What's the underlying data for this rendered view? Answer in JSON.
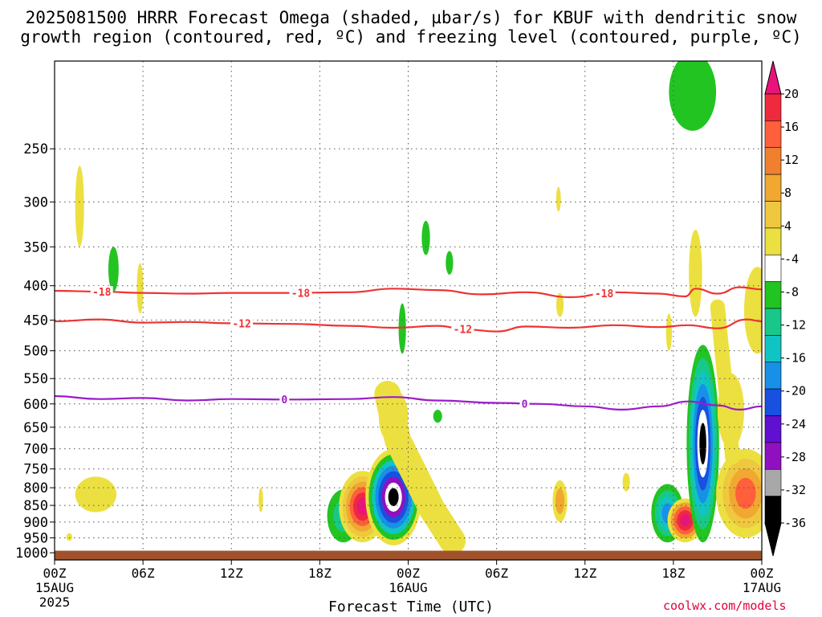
{
  "title": {
    "line1": "2025081500 HRRR Forecast Omega (shaded, µbar/s) for KBUF with dendritic snow",
    "line2": "growth region (contoured, red, ºC) and freezing level (contoured, purple, ºC)"
  },
  "credit": "coolwx.com/models",
  "chart_data": {
    "type": "heatmap",
    "xlabel": "Forecast Time (UTC)",
    "ylabel": "",
    "y_axis": {
      "scale": "pressure",
      "ylim": [
        1025,
        185
      ],
      "ticks": [
        250,
        300,
        350,
        400,
        450,
        500,
        550,
        600,
        650,
        700,
        750,
        800,
        850,
        900,
        950,
        1000
      ]
    },
    "x_axis": {
      "xlim": [
        0,
        48
      ],
      "unit": "hours from 2025081500",
      "ticks": [
        {
          "h": 0,
          "label": "00Z",
          "sub1": "15AUG",
          "sub2": "2025"
        },
        {
          "h": 6,
          "label": "06Z",
          "sub1": "",
          "sub2": ""
        },
        {
          "h": 12,
          "label": "12Z",
          "sub1": "",
          "sub2": ""
        },
        {
          "h": 18,
          "label": "18Z",
          "sub1": "",
          "sub2": ""
        },
        {
          "h": 24,
          "label": "00Z",
          "sub1": "16AUG",
          "sub2": ""
        },
        {
          "h": 30,
          "label": "06Z",
          "sub1": "",
          "sub2": ""
        },
        {
          "h": 36,
          "label": "12Z",
          "sub1": "",
          "sub2": ""
        },
        {
          "h": 42,
          "label": "18Z",
          "sub1": "",
          "sub2": ""
        },
        {
          "h": 48,
          "label": "00Z",
          "sub1": "17AUG",
          "sub2": ""
        }
      ]
    },
    "grid": true,
    "colorbar": {
      "labels": [
        "20",
        "16",
        "12",
        "8",
        "4",
        "-4",
        "-8",
        "-12",
        "-16",
        "-20",
        "-24",
        "-28",
        "-32",
        "-36"
      ],
      "colors": [
        "#ee2a3c",
        "#ff5f3a",
        "#f08030",
        "#f0a830",
        "#f0c840",
        "#ece040",
        "#ffffff",
        "#22c422",
        "#18c88a",
        "#10c4c4",
        "#1890e8",
        "#1850e0",
        "#6010d0",
        "#9010c0",
        "#a8a8a8",
        "#000000"
      ],
      "top_arrow": "#e8147c",
      "bottom_arrow": "#000000"
    },
    "ground": {
      "color": "#a0522d",
      "pressure_top": 993
    },
    "contours": [
      {
        "name": "-18",
        "color": "#ee3333",
        "kind": "dgz",
        "points": [
          [
            0,
            407
          ],
          [
            3,
            408
          ],
          [
            6,
            410
          ],
          [
            9,
            411
          ],
          [
            12,
            410
          ],
          [
            16,
            410
          ],
          [
            20,
            409
          ],
          [
            23,
            404
          ],
          [
            26,
            406
          ],
          [
            29,
            412
          ],
          [
            32,
            409
          ],
          [
            35,
            416
          ],
          [
            38,
            409
          ],
          [
            41,
            411
          ],
          [
            42.8,
            415
          ],
          [
            43.5,
            404
          ],
          [
            45,
            411
          ],
          [
            46.5,
            402
          ],
          [
            48,
            405
          ]
        ],
        "labels": [
          {
            "h": 3.2,
            "text": "-18"
          },
          {
            "h": 16.7,
            "text": "-18"
          },
          {
            "h": 37.3,
            "text": "-18"
          }
        ]
      },
      {
        "name": "-12",
        "color": "#ee3333",
        "kind": "dgz",
        "points": [
          [
            0,
            452
          ],
          [
            3,
            449
          ],
          [
            6,
            454
          ],
          [
            9,
            453
          ],
          [
            12,
            455
          ],
          [
            16,
            456
          ],
          [
            20,
            459
          ],
          [
            23,
            462
          ],
          [
            26,
            459
          ],
          [
            28,
            465
          ],
          [
            30,
            468
          ],
          [
            32,
            460
          ],
          [
            35,
            462
          ],
          [
            38,
            458
          ],
          [
            41,
            461
          ],
          [
            43,
            458
          ],
          [
            45,
            463
          ],
          [
            47,
            449
          ],
          [
            48,
            452
          ]
        ],
        "labels": [
          {
            "h": 12.7,
            "text": "-12"
          },
          {
            "h": 27.7,
            "text": "-12"
          }
        ]
      },
      {
        "name": "0",
        "color": "#9a1cc8",
        "kind": "freezing",
        "points": [
          [
            0,
            584
          ],
          [
            3,
            590
          ],
          [
            6,
            588
          ],
          [
            9,
            593
          ],
          [
            12,
            590
          ],
          [
            16,
            591
          ],
          [
            20,
            590
          ],
          [
            23,
            586
          ],
          [
            26,
            593
          ],
          [
            30,
            598
          ],
          [
            33,
            600
          ],
          [
            36,
            605
          ],
          [
            38.5,
            612
          ],
          [
            41,
            605
          ],
          [
            43,
            595
          ],
          [
            45,
            603
          ],
          [
            46.5,
            612
          ],
          [
            48,
            605
          ]
        ],
        "labels": [
          {
            "h": 15.6,
            "text": "0"
          },
          {
            "h": 31.9,
            "text": "0"
          }
        ]
      }
    ],
    "cells": [
      {
        "h": 1.7,
        "p0": 265,
        "p1": 350,
        "w": 0.3,
        "layers": [
          "#ece040"
        ]
      },
      {
        "h": 4.0,
        "p0": 350,
        "p1": 408,
        "w": 0.35,
        "layers": [
          "#22c422"
        ]
      },
      {
        "h": 5.8,
        "p0": 370,
        "p1": 440,
        "w": 0.22,
        "layers": [
          "#ece040"
        ]
      },
      {
        "h": 2.8,
        "p0": 770,
        "p1": 870,
        "w": 1.4,
        "layers": [
          "#ece040"
        ]
      },
      {
        "h": 1.0,
        "p0": 935,
        "p1": 960,
        "w": 0.2,
        "layers": [
          "#ece040"
        ]
      },
      {
        "h": 14.0,
        "p0": 800,
        "p1": 870,
        "w": 0.15,
        "layers": [
          "#ece040"
        ]
      },
      {
        "h": 23.6,
        "p0": 425,
        "p1": 505,
        "w": 0.25,
        "layers": [
          "#22c422"
        ]
      },
      {
        "h": 25.2,
        "p0": 320,
        "p1": 360,
        "w": 0.28,
        "layers": [
          "#22c422"
        ]
      },
      {
        "h": 26.8,
        "p0": 355,
        "p1": 385,
        "w": 0.25,
        "layers": [
          "#22c422"
        ]
      },
      {
        "h": 26.0,
        "p0": 612,
        "p1": 640,
        "w": 0.3,
        "layers": [
          "#22c422"
        ]
      },
      {
        "h": 34.2,
        "p0": 285,
        "p1": 310,
        "w": 0.16,
        "layers": [
          "#ece040"
        ]
      },
      {
        "h": 34.3,
        "p0": 410,
        "p1": 445,
        "w": 0.25,
        "layers": [
          "#ece040"
        ]
      },
      {
        "h": 34.3,
        "p0": 780,
        "p1": 900,
        "w": 0.5,
        "layers": [
          "#ece040",
          "#f0a830"
        ]
      },
      {
        "h": 38.8,
        "p0": 760,
        "p1": 810,
        "w": 0.25,
        "layers": [
          "#ece040"
        ]
      },
      {
        "h": 43.3,
        "p0": 180,
        "p1": 235,
        "w": 1.6,
        "layers": [
          "#22c422"
        ]
      },
      {
        "h": 43.5,
        "p0": 330,
        "p1": 445,
        "w": 0.45,
        "layers": [
          "#ece040"
        ]
      },
      {
        "h": 41.7,
        "p0": 440,
        "p1": 500,
        "w": 0.2,
        "layers": [
          "#ece040"
        ]
      },
      {
        "h": 47.7,
        "p0": 375,
        "p1": 505,
        "w": 0.9,
        "layers": [
          "#ece040"
        ]
      },
      {
        "h": 19.6,
        "p0": 805,
        "p1": 965,
        "w": 1.1,
        "layers": [
          "#22c422",
          "#18c88a"
        ]
      },
      {
        "h": 20.9,
        "p0": 755,
        "p1": 965,
        "w": 1.6,
        "layers": [
          "#ece040",
          "#f0c840",
          "#f0a830",
          "#ff5f3a",
          "#ee2a3c",
          "#e8147c"
        ]
      },
      {
        "h": 23.0,
        "p0": 700,
        "p1": 975,
        "w": 1.9,
        "layers": [
          "#ece040",
          "#22c422",
          "#10c4c4",
          "#1890e8",
          "#1850e0",
          "#9010c0",
          "#ffffff",
          "#000000"
        ]
      },
      {
        "h": 23.0,
        "p0": 570,
        "p1": 690,
        "w": 1.0,
        "layers": [
          "#ece040",
          "#f0a830",
          "#f08030"
        ]
      },
      {
        "h": 41.6,
        "p0": 790,
        "p1": 965,
        "w": 1.1,
        "layers": [
          "#22c422",
          "#18c88a",
          "#10c4c4",
          "#1890e8"
        ]
      },
      {
        "h": 42.8,
        "p0": 830,
        "p1": 965,
        "w": 1.2,
        "layers": [
          "#ece040",
          "#f0a830",
          "#ff5f3a",
          "#ee2a3c",
          "#e8147c"
        ]
      },
      {
        "h": 44.0,
        "p0": 490,
        "p1": 965,
        "w": 1.1,
        "layers": [
          "#22c422",
          "#18c88a",
          "#10c4c4",
          "#1890e8",
          "#1850e0",
          "#ffffff",
          "#000000"
        ]
      },
      {
        "h": 45.9,
        "p0": 540,
        "p1": 700,
        "w": 0.9,
        "layers": [
          "#ece040"
        ]
      },
      {
        "h": 46.9,
        "p0": 700,
        "p1": 950,
        "w": 2.0,
        "layers": [
          "#ece040",
          "#f0c840",
          "#f0a830",
          "#ff5f3a"
        ]
      }
    ],
    "streaks": [
      {
        "pts": [
          [
            22.6,
            580
          ],
          [
            23.3,
            680
          ],
          [
            24.4,
            760
          ],
          [
            25.6,
            860
          ],
          [
            27.0,
            960
          ]
        ],
        "width": 0.9,
        "color": "#ece040"
      },
      {
        "pts": [
          [
            45.0,
            430
          ],
          [
            45.4,
            530
          ],
          [
            45.8,
            640
          ],
          [
            46.0,
            720
          ]
        ],
        "width": 0.5,
        "color": "#ece040"
      }
    ]
  }
}
